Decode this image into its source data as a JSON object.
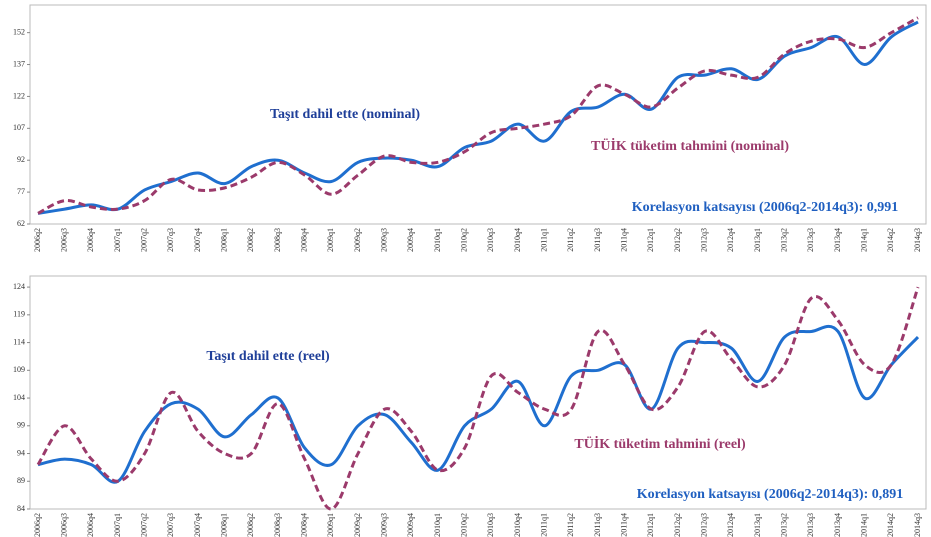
{
  "chart_data": [
    {
      "type": "line",
      "categories": [
        "2006q2",
        "2006q3",
        "2006q4",
        "2007q1",
        "2007q2",
        "2007q3",
        "2007q4",
        "2008q1",
        "2008q2",
        "2008q3",
        "2008q4",
        "2009q1",
        "2009q2",
        "2009q3",
        "2009q4",
        "2010q1",
        "2010q2",
        "2010q3",
        "2010q4",
        "2011q1",
        "2011q2",
        "2011q3",
        "2011q4",
        "2012q1",
        "2012q2",
        "2012q3",
        "2012q4",
        "2013q1",
        "2013q2",
        "2013q3",
        "2013q4",
        "2014q1",
        "2014q2",
        "2014q3"
      ],
      "series": [
        {
          "name": "Taşıt dahil ette (nominal)",
          "color": "#1f6fcf",
          "dashed": false,
          "values": [
            67,
            69,
            71,
            69,
            78,
            82,
            86,
            81,
            89,
            92,
            86,
            82,
            91,
            93,
            92,
            89,
            98,
            101,
            109,
            101,
            115,
            117,
            123,
            116,
            131,
            132,
            135,
            130,
            141,
            145,
            150,
            137,
            150,
            157
          ]
        },
        {
          "name": "TÜİK tüketim tahmini (nominal)",
          "color": "#9b3a6b",
          "dashed": true,
          "values": [
            67,
            73,
            70,
            69,
            73,
            83,
            78,
            79,
            84,
            91,
            85,
            76,
            85,
            94,
            91,
            91,
            96,
            105,
            107,
            109,
            113,
            127,
            123,
            117,
            126,
            134,
            132,
            131,
            142,
            148,
            149,
            145,
            152,
            159
          ]
        }
      ],
      "annotations": [
        "Taşıt dahil ette (nominal)",
        "TÜİK tüketim tahmini (nominal)",
        "Korelasyon katsayısı (2006q2-2014q3): 0,991"
      ],
      "ylim": [
        62,
        165
      ],
      "yticks": [
        62,
        77,
        92,
        107,
        122,
        137,
        152
      ]
    },
    {
      "type": "line",
      "categories": [
        "2006q2",
        "2006q3",
        "2006q4",
        "2007q1",
        "2007q2",
        "2007q3",
        "2007q4",
        "2008q1",
        "2008q2",
        "2008q3",
        "2008q4",
        "2009q1",
        "2009q2",
        "2009q3",
        "2009q4",
        "2010q1",
        "2010q2",
        "2010q3",
        "2010q4",
        "2011q1",
        "2011q2",
        "2011q3",
        "2011q4",
        "2012q1",
        "2012q2",
        "2012q3",
        "2012q4",
        "2013q1",
        "2013q2",
        "2013q3",
        "2013q4",
        "2014q1",
        "2014q2",
        "2014q3"
      ],
      "series": [
        {
          "name": "Taşıt dahil ette (reel)",
          "color": "#1f6fcf",
          "dashed": false,
          "values": [
            92,
            93,
            92,
            89,
            98,
            103,
            102,
            97,
            101,
            104,
            95,
            92,
            99,
            101,
            96,
            91,
            99,
            102,
            107,
            99,
            108,
            109,
            110,
            102,
            113,
            114,
            113,
            107,
            115,
            116,
            116,
            104,
            110,
            115
          ]
        },
        {
          "name": "TÜİK tüketim tahmini (reel)",
          "color": "#9b3a6b",
          "dashed": true,
          "values": [
            92,
            99,
            93,
            89,
            94,
            105,
            98,
            94,
            94,
            103,
            93,
            84,
            94,
            102,
            98,
            91,
            95,
            108,
            105,
            102,
            102,
            116,
            110,
            102,
            106,
            116,
            111,
            106,
            110,
            122,
            118,
            110,
            110,
            124
          ]
        }
      ],
      "annotations": [
        "Taşıt dahil ette (reel)",
        "TÜİK tüketim tahmini (reel)",
        "Korelasyon katsayısı (2006q2-2014q3): 0,891"
      ],
      "ylim": [
        84,
        126
      ],
      "yticks": [
        84,
        89,
        94,
        99,
        104,
        109,
        114,
        119,
        124
      ]
    }
  ]
}
